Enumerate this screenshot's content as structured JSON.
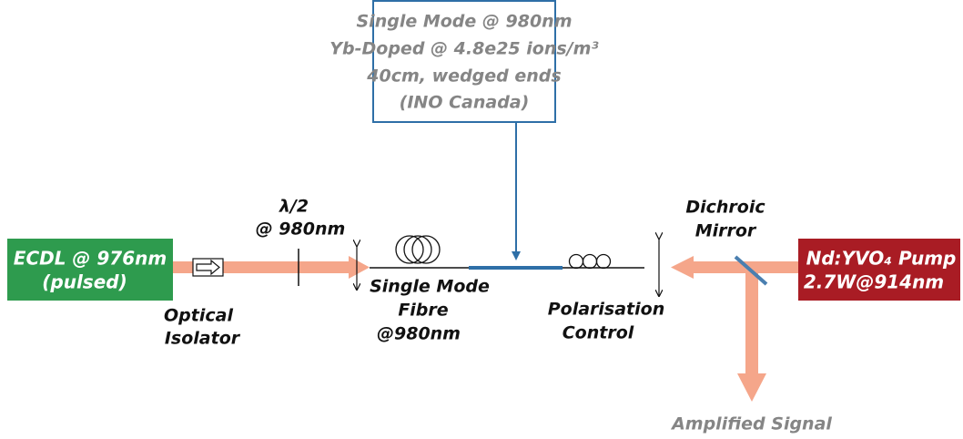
{
  "fibre_box": {
    "lines": [
      "Single Mode @ 980nm",
      "Yb-Doped @ 4.8e25 ions/m³",
      "40cm, wedged ends",
      "(INO Canada)"
    ]
  },
  "source": {
    "lines": [
      "ECDL @ 976nm",
      "(pulsed)"
    ]
  },
  "pump": {
    "lines": [
      "Nd:YVO₄ Pump",
      "2.7W@914nm"
    ]
  },
  "half_wave_plate": {
    "lines": [
      "λ/2",
      "@ 980nm"
    ]
  },
  "isolator": {
    "lines": [
      "Optical",
      "Isolator"
    ]
  },
  "input_fibre": {
    "lines": [
      "Single Mode",
      "Fibre",
      "@980nm"
    ]
  },
  "polarisation": {
    "lines": [
      "Polarisation",
      "Control"
    ]
  },
  "mirror": {
    "lines": [
      "Dichroic",
      "Mirror"
    ]
  },
  "output": {
    "label": "Amplified Signal"
  }
}
